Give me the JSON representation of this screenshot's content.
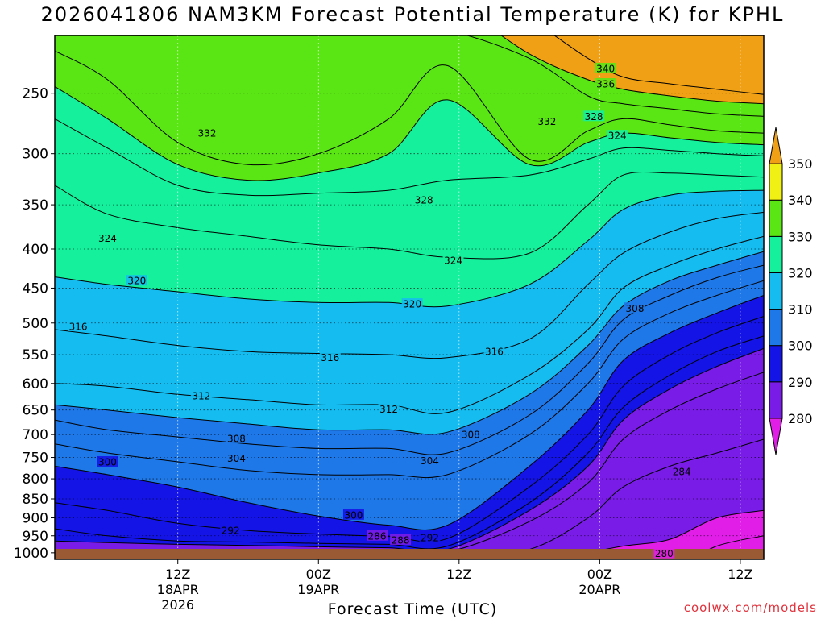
{
  "title": "2026041806 NAM3KM Forecast Potential Temperature (K) for KPHL",
  "xlabel": "Forecast Time (UTC)",
  "credit": "coolwx.com/models",
  "colors": {
    "ground": "#9a5a34",
    "bands": [
      "#e01ee8",
      "#7a1ce8",
      "#1414e6",
      "#1e78e8",
      "#14bcf0",
      "#14f09c",
      "#5ae614",
      "#f0f014",
      "#f0a014"
    ]
  },
  "chart_data": {
    "type": "contour",
    "title": "2026041806 NAM3KM Forecast Potential Temperature (K) for KPHL",
    "xlabel": "Forecast Time (UTC)",
    "ylabel": "",
    "y_scale": "log (pressure, hPa, inverted)",
    "ylim": [
      1020,
      210
    ],
    "x_range_hours": [
      -4.5,
      56
    ],
    "x_ticks": [
      {
        "hour": 6,
        "lines": [
          "12Z",
          "18APR",
          "2026"
        ]
      },
      {
        "hour": 18,
        "lines": [
          "00Z",
          "19APR"
        ]
      },
      {
        "hour": 30,
        "lines": [
          "12Z"
        ]
      },
      {
        "hour": 42,
        "lines": [
          "00Z",
          "20APR"
        ]
      },
      {
        "hour": 54,
        "lines": [
          "12Z"
        ]
      }
    ],
    "y_ticks": [
      250,
      300,
      350,
      400,
      450,
      500,
      550,
      600,
      650,
      700,
      750,
      800,
      850,
      900,
      950,
      1000
    ],
    "grid": true,
    "colorbar": {
      "levels": [
        270,
        280,
        290,
        300,
        310,
        320,
        330,
        340,
        350,
        360
      ],
      "labels": [
        280,
        290,
        300,
        310,
        320,
        330,
        340,
        350
      ],
      "placement": "right"
    },
    "contour_interval": 2,
    "isentropes": [
      {
        "theta": 350,
        "p": [
          175,
          175,
          175,
          175,
          175,
          175,
          175,
          200,
          225,
          238,
          243,
          247,
          251
        ]
      },
      {
        "theta": 340,
        "p": [
          190,
          190,
          190,
          190,
          190,
          190,
          190,
          222,
          240,
          247,
          252,
          256,
          258
        ]
      },
      {
        "theta": 336,
        "p": [
          210,
          210,
          210,
          208,
          208,
          208,
          207,
          225,
          252,
          258,
          262,
          266,
          268
        ]
      },
      {
        "theta": 332,
        "p": [
          220,
          240,
          290,
          310,
          300,
          270,
          230,
          305,
          280,
          270,
          275,
          280,
          282
        ]
      },
      {
        "theta": 330,
        "p": [
          245,
          270,
          310,
          325,
          318,
          300,
          255,
          310,
          290,
          282,
          286,
          290,
          292
        ]
      },
      {
        "theta": 328,
        "p": [
          270,
          295,
          330,
          340,
          338,
          335,
          325,
          320,
          305,
          295,
          297,
          300,
          302
        ]
      },
      {
        "theta": 324,
        "p": [
          330,
          360,
          375,
          385,
          395,
          400,
          410,
          405,
          350,
          320,
          318,
          320,
          322
        ]
      },
      {
        "theta": 320,
        "p": [
          435,
          445,
          455,
          465,
          470,
          470,
          475,
          445,
          390,
          355,
          340,
          336,
          335
        ]
      },
      {
        "theta": 316,
        "p": [
          510,
          520,
          535,
          545,
          548,
          550,
          555,
          525,
          445,
          405,
          380,
          365,
          358
        ]
      },
      {
        "theta": 312,
        "p": [
          600,
          605,
          620,
          630,
          640,
          640,
          655,
          585,
          510,
          450,
          420,
          400,
          385
        ]
      },
      {
        "theta": 310,
        "p": [
          640,
          650,
          665,
          678,
          690,
          690,
          695,
          620,
          535,
          475,
          440,
          420,
          403
        ]
      },
      {
        "theta": 308,
        "p": [
          670,
          690,
          705,
          720,
          730,
          730,
          740,
          660,
          565,
          495,
          460,
          436,
          420
        ]
      },
      {
        "theta": 304,
        "p": [
          720,
          740,
          760,
          780,
          790,
          790,
          790,
          700,
          600,
          525,
          485,
          460,
          440
        ]
      },
      {
        "theta": 300,
        "p": [
          770,
          790,
          820,
          860,
          895,
          920,
          920,
          770,
          650,
          560,
          515,
          485,
          460
        ]
      },
      {
        "theta": 296,
        "p": [
          860,
          880,
          915,
          935,
          945,
          952,
          958,
          820,
          700,
          605,
          550,
          515,
          490
        ]
      },
      {
        "theta": 292,
        "p": [
          930,
          950,
          965,
          968,
          972,
          975,
          980,
          860,
          740,
          645,
          585,
          545,
          520
        ]
      },
      {
        "theta": 290,
        "p": [
          965,
          970,
          975,
          978,
          982,
          985,
          990,
          880,
          770,
          670,
          610,
          570,
          540
        ]
      },
      {
        "theta": 288,
        "p": [
          990,
          992,
          990,
          992,
          995,
          995,
          998,
          910,
          810,
          710,
          650,
          610,
          580
        ]
      },
      {
        "theta": 284,
        "p": [
          1025,
          1025,
          1025,
          1025,
          1025,
          1025,
          1025,
          990,
          900,
          820,
          770,
          740,
          710
        ]
      },
      {
        "theta": 280,
        "p": [
          1040,
          1040,
          1040,
          1040,
          1040,
          1040,
          1040,
          1040,
          1000,
          980,
          960,
          900,
          880
        ]
      },
      {
        "theta": 276,
        "p": [
          1050,
          1050,
          1050,
          1050,
          1050,
          1050,
          1050,
          1050,
          1050,
          1050,
          1050,
          980,
          950
        ]
      }
    ],
    "isentrope_hours": [
      -4.5,
      0,
      6,
      12,
      18,
      24,
      29,
      36,
      41,
      44,
      48,
      52,
      56
    ],
    "contour_labels": [
      {
        "text": "340",
        "hour": 42.5,
        "p": 232
      },
      {
        "text": "336",
        "hour": 42.5,
        "p": 243
      },
      {
        "text": "332",
        "hour": 8.5,
        "p": 282
      },
      {
        "text": "332",
        "hour": 37.5,
        "p": 272
      },
      {
        "text": "328",
        "hour": 41.5,
        "p": 268
      },
      {
        "text": "328",
        "hour": 27,
        "p": 345
      },
      {
        "text": "324",
        "hour": 43.5,
        "p": 284
      },
      {
        "text": "324",
        "hour": 0,
        "p": 387
      },
      {
        "text": "324",
        "hour": 29.5,
        "p": 414
      },
      {
        "text": "320",
        "hour": 2.5,
        "p": 440
      },
      {
        "text": "320",
        "hour": 26,
        "p": 472
      },
      {
        "text": "316",
        "hour": -2.5,
        "p": 505
      },
      {
        "text": "316",
        "hour": 19,
        "p": 555
      },
      {
        "text": "316",
        "hour": 33,
        "p": 545
      },
      {
        "text": "312",
        "hour": 8,
        "p": 623
      },
      {
        "text": "312",
        "hour": 24,
        "p": 648
      },
      {
        "text": "308",
        "hour": 45,
        "p": 478
      },
      {
        "text": "308",
        "hour": 11,
        "p": 708
      },
      {
        "text": "308",
        "hour": 31,
        "p": 700
      },
      {
        "text": "304",
        "hour": 11,
        "p": 752
      },
      {
        "text": "304",
        "hour": 27.5,
        "p": 757
      },
      {
        "text": "300",
        "hour": 0,
        "p": 760
      },
      {
        "text": "300",
        "hour": 21,
        "p": 892
      },
      {
        "text": "292",
        "hour": 10.5,
        "p": 935
      },
      {
        "text": "292",
        "hour": 27.5,
        "p": 955
      },
      {
        "text": "286",
        "hour": 23,
        "p": 950
      },
      {
        "text": "288",
        "hour": 25,
        "p": 962
      },
      {
        "text": "284",
        "hour": 49,
        "p": 783
      },
      {
        "text": "280",
        "hour": 47.5,
        "p": 1002
      }
    ]
  }
}
